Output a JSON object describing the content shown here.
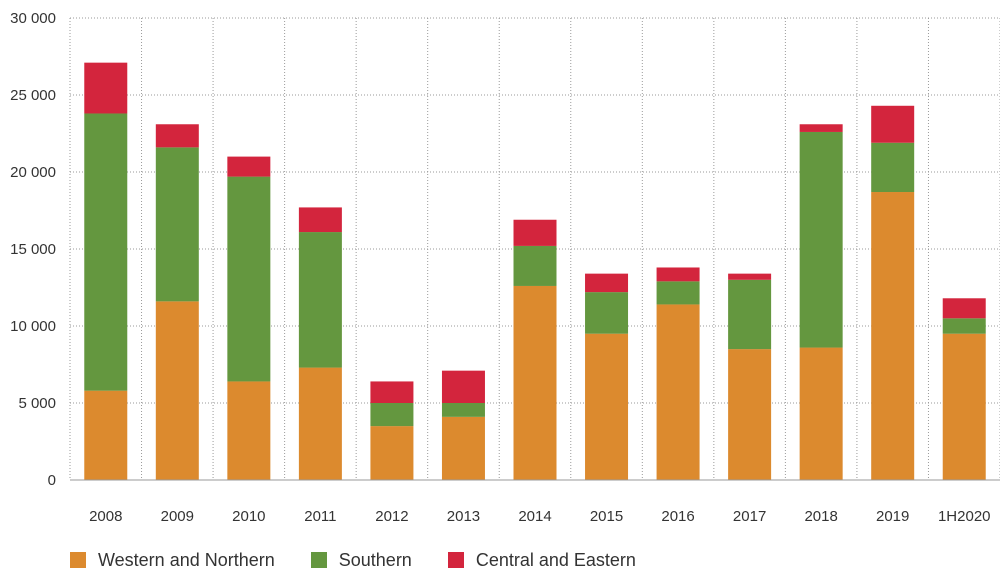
{
  "chart_data": {
    "type": "bar",
    "stacked": true,
    "categories": [
      "2008",
      "2009",
      "2010",
      "2011",
      "2012",
      "2013",
      "2014",
      "2015",
      "2016",
      "2017",
      "2018",
      "2019",
      "1H2020"
    ],
    "series": [
      {
        "name": "Western and Northern",
        "color": "#dc8a2e",
        "values": [
          5800,
          11600,
          6400,
          7300,
          3500,
          4100,
          12600,
          9500,
          11400,
          8500,
          8600,
          18700,
          9500
        ]
      },
      {
        "name": "Southern",
        "color": "#64973f",
        "values": [
          18000,
          10000,
          13300,
          8800,
          1500,
          900,
          2600,
          2700,
          1500,
          4500,
          14000,
          3200,
          1000
        ]
      },
      {
        "name": "Central and Eastern",
        "color": "#d3253d",
        "values": [
          3300,
          1500,
          1300,
          1600,
          1400,
          2100,
          1700,
          1200,
          900,
          400,
          500,
          2400,
          1300
        ]
      }
    ],
    "y_ticks": [
      0,
      5000,
      10000,
      15000,
      20000,
      25000,
      30000
    ],
    "y_tick_labels": [
      "0",
      "5 000",
      "10 000",
      "15 000",
      "20 000",
      "25 000",
      "30 000"
    ],
    "ylim": [
      0,
      30000
    ],
    "grid": "dotted",
    "legend_position": "bottom-left"
  }
}
